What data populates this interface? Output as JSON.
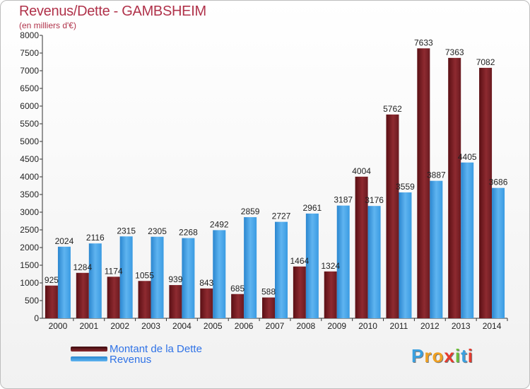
{
  "chart_data": {
    "type": "bar",
    "title": "Revenus/Dette - GAMBSHEIM",
    "subtitle": "(en milliers d'€)",
    "categories": [
      "2000",
      "2001",
      "2002",
      "2003",
      "2004",
      "2005",
      "2006",
      "2007",
      "2008",
      "2009",
      "2010",
      "2011",
      "2012",
      "2013",
      "2014"
    ],
    "series": [
      {
        "name": "Montant de la Dette",
        "color": "#7a1f24",
        "values": [
          925,
          1284,
          1174,
          1055,
          939,
          843,
          685,
          588,
          1464,
          1324,
          4004,
          5762,
          7633,
          7363,
          7082
        ]
      },
      {
        "name": "Revenus",
        "color": "#3d9ee6",
        "values": [
          2024,
          2116,
          2315,
          2305,
          2268,
          2492,
          2859,
          2727,
          2961,
          3187,
          3176,
          3559,
          3887,
          4405,
          3686
        ]
      }
    ],
    "data_labels": {
      "Montant de la Dette": [
        "925",
        "1284",
        "1174",
        "1055",
        "939",
        "843",
        "685",
        "588",
        "1464",
        "1324",
        "4004",
        "5762",
        "7633",
        "7363",
        "7082"
      ],
      "Revenus": [
        "2024",
        "2116",
        "2315",
        "2305",
        "2268",
        "2492",
        "2859",
        "2727",
        "2961",
        "3187",
        "3176",
        "3559",
        "3887",
        "4405",
        "3686"
      ]
    },
    "ylim": [
      0,
      8000
    ],
    "yticks": [
      0,
      500,
      1000,
      1500,
      2000,
      2500,
      3000,
      3500,
      4000,
      4500,
      5000,
      5500,
      6000,
      6500,
      7000,
      7500,
      8000
    ],
    "grid": false,
    "legend_position": "bottom-left"
  },
  "legend": {
    "debt_label": "Montant de la Dette",
    "revenue_label": "Revenus"
  },
  "logo": {
    "letters": [
      "P",
      "r",
      "o",
      "x",
      "i",
      "t",
      "i"
    ],
    "colors": [
      "#3aa0e0",
      "#f0a020",
      "#f0a020",
      "#e63a2e",
      "#6cbf3a",
      "#3aa0e0",
      "#e63a2e"
    ]
  }
}
